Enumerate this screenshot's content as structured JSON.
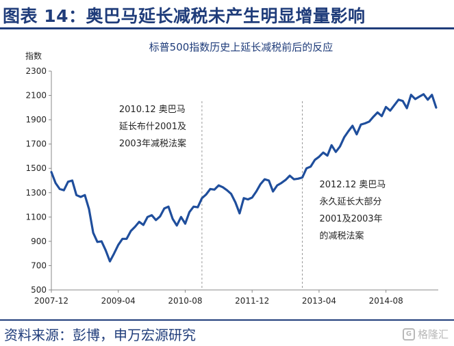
{
  "header": {
    "title": "图表 14：奥巴马延长减税未产生明显增量影响"
  },
  "footer": {
    "source": "资料来源：彭博，申万宏源研究",
    "watermark": "格隆汇"
  },
  "colors": {
    "brand": "#1F3C7A",
    "line": "#1F4E9C",
    "annotation_line": "#999999"
  },
  "icons": {
    "watermark": "gelonghui-logo-icon"
  },
  "chart_data": {
    "type": "line",
    "title": "标普500指数历史上延长减税前后的反应",
    "ylabel": "指数",
    "xlabel": "",
    "ylim": [
      500,
      2300
    ],
    "yticks": [
      "2300",
      "2100",
      "1900",
      "1700",
      "1500",
      "1300",
      "1100",
      "900",
      "700",
      "500"
    ],
    "xticks": [
      "2007-12",
      "2009-04",
      "2010-08",
      "2011-12",
      "2013-04",
      "2014-08"
    ],
    "grid": false,
    "annotations": [
      {
        "at": "2010-12",
        "lines": [
          "2010.12 奥巴马",
          "延长布什2001及",
          "2003年减税法案"
        ]
      },
      {
        "at": "2012-12",
        "lines": [
          "2012.12 奥巴马",
          "永久延长大部分",
          "2001及2003年",
          "的减税法案"
        ]
      }
    ],
    "series": [
      {
        "x": [
          "2007-12",
          "2008-01",
          "2008-02",
          "2008-03",
          "2008-04",
          "2008-05",
          "2008-06",
          "2008-07",
          "2008-08",
          "2008-09",
          "2008-10",
          "2008-11",
          "2008-12",
          "2009-01",
          "2009-02",
          "2009-03",
          "2009-04",
          "2009-05",
          "2009-06",
          "2009-07",
          "2009-08",
          "2009-09",
          "2009-10",
          "2009-11",
          "2009-12",
          "2010-01",
          "2010-02",
          "2010-03",
          "2010-04",
          "2010-05",
          "2010-06",
          "2010-07",
          "2010-08",
          "2010-09",
          "2010-10",
          "2010-11",
          "2010-12",
          "2011-01",
          "2011-02",
          "2011-03",
          "2011-04",
          "2011-05",
          "2011-06",
          "2011-07",
          "2011-08",
          "2011-09",
          "2011-10",
          "2011-11",
          "2011-12",
          "2012-01",
          "2012-02",
          "2012-03",
          "2012-04",
          "2012-05",
          "2012-06",
          "2012-07",
          "2012-08",
          "2012-09",
          "2012-10",
          "2012-11",
          "2012-12",
          "2013-01",
          "2013-02",
          "2013-03",
          "2013-04",
          "2013-05",
          "2013-06",
          "2013-07",
          "2013-08",
          "2013-09",
          "2013-10",
          "2013-11",
          "2013-12",
          "2014-01",
          "2014-02",
          "2014-03",
          "2014-04",
          "2014-05",
          "2014-06",
          "2014-07",
          "2014-08",
          "2014-09",
          "2014-10",
          "2014-11",
          "2014-12",
          "2015-01",
          "2015-02",
          "2015-03",
          "2015-04",
          "2015-05",
          "2015-06",
          "2015-07",
          "2015-08"
        ],
        "values": [
          1470,
          1380,
          1330,
          1320,
          1390,
          1400,
          1280,
          1265,
          1280,
          1165,
          970,
          895,
          900,
          825,
          735,
          800,
          870,
          920,
          920,
          985,
          1020,
          1060,
          1035,
          1100,
          1115,
          1075,
          1105,
          1170,
          1185,
          1085,
          1030,
          1100,
          1045,
          1140,
          1185,
          1180,
          1255,
          1285,
          1330,
          1325,
          1360,
          1345,
          1320,
          1290,
          1220,
          1130,
          1255,
          1245,
          1260,
          1310,
          1370,
          1410,
          1400,
          1310,
          1360,
          1380,
          1405,
          1440,
          1410,
          1415,
          1425,
          1500,
          1515,
          1570,
          1595,
          1630,
          1605,
          1690,
          1635,
          1680,
          1755,
          1805,
          1850,
          1780,
          1860,
          1870,
          1885,
          1925,
          1960,
          1930,
          2005,
          1975,
          2020,
          2065,
          2055,
          1995,
          2105,
          2070,
          2090,
          2110,
          2065,
          2105,
          2000
        ]
      }
    ]
  }
}
